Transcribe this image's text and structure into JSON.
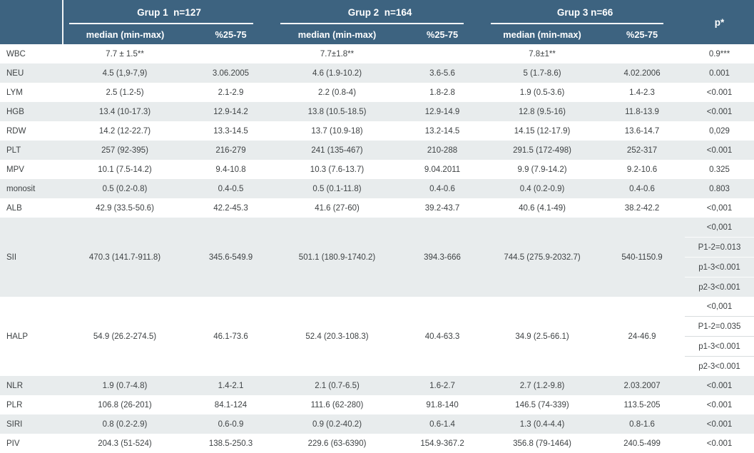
{
  "table": {
    "groups": [
      {
        "label": "Grup 1  n=127"
      },
      {
        "label": "Grup 2  n=164"
      },
      {
        "label": "Grup 3 n=66"
      }
    ],
    "subheaders": {
      "median": "median (min-max)",
      "quartiles": "%25-75"
    },
    "p_header": "p*",
    "colors": {
      "header_bg": "#3d6380",
      "stripe_bg": "#e8eced",
      "text": "#3f4345",
      "header_text": "#ffffff"
    },
    "rows": [
      {
        "label": "WBC",
        "cells": [
          "7.7 ± 1.5**",
          "",
          "7.7±1.8**",
          "",
          "7.8±1**",
          ""
        ],
        "p": "0.9***",
        "striped": false
      },
      {
        "label": "NEU",
        "cells": [
          "4.5 (1,9-7,9)",
          "3.06.2005",
          "4.6 (1.9-10.2)",
          "3.6-5.6",
          "5 (1.7-8.6)",
          "4.02.2006"
        ],
        "p": "0.001",
        "striped": true
      },
      {
        "label": "LYM",
        "cells": [
          "2.5 (1.2-5)",
          "2.1-2.9",
          "2.2 (0.8-4)",
          "1.8-2.8",
          "1.9 (0.5-3.6)",
          "1.4-2.3"
        ],
        "p": "<0.001",
        "striped": false
      },
      {
        "label": "HGB",
        "cells": [
          "13.4 (10-17.3)",
          "12.9-14.2",
          "13.8 (10.5-18.5)",
          "12.9-14.9",
          "12.8 (9.5-16)",
          "11.8-13.9"
        ],
        "p": "<0.001",
        "striped": true
      },
      {
        "label": "RDW",
        "cells": [
          "14.2 (12-22.7)",
          "13.3-14.5",
          "13.7 (10.9-18)",
          "13.2-14.5",
          "14.15 (12-17.9)",
          "13.6-14.7"
        ],
        "p": "0,029",
        "striped": false
      },
      {
        "label": "PLT",
        "cells": [
          "257 (92-395)",
          "216-279",
          "241 (135-467)",
          "210-288",
          "291.5 (172-498)",
          "252-317"
        ],
        "p": "<0.001",
        "striped": true
      },
      {
        "label": "MPV",
        "cells": [
          "10.1 (7.5-14.2)",
          "9.4-10.8",
          "10.3 (7.6-13.7)",
          "9.04.2011",
          "9.9 (7.9-14.2)",
          "9.2-10.6"
        ],
        "p": "0.325",
        "striped": false
      },
      {
        "label": "monosit",
        "cells": [
          "0.5 (0.2-0.8)",
          "0.4-0.5",
          "0.5 (0.1-11.8)",
          "0.4-0.6",
          "0.4 (0.2-0.9)",
          "0.4-0.6"
        ],
        "p": "0.803",
        "striped": true
      },
      {
        "label": "ALB",
        "cells": [
          "42.9 (33.5-50.6)",
          "42.2-45.3",
          "41.6 (27-60)",
          "39.2-43.7",
          "40.6 (4.1-49)",
          "38.2-42.2"
        ],
        "p": "<0,001",
        "striped": false
      },
      {
        "label": "SII",
        "cells": [
          "470.3 (141.7-911.8)",
          "345.6-549.9",
          "501.1 (180.9-1740.2)",
          "394.3-666",
          "744.5 (275.9-2032.7)",
          "540-1150.9"
        ],
        "p_list": [
          "<0,001",
          "P1-2=0.013",
          "p1-3<0.001",
          "p2-3<0.001"
        ],
        "striped": true
      },
      {
        "label": "HALP",
        "cells": [
          "54.9 (26.2-274.5)",
          "46.1-73.6",
          "52.4 (20.3-108.3)",
          "40.4-63.3",
          "34.9 (2.5-66.1)",
          "24-46.9"
        ],
        "p_list": [
          "<0,001",
          "P1-2=0.035",
          "p1-3<0.001",
          "p2-3<0.001"
        ],
        "striped": false
      },
      {
        "label": "NLR",
        "cells": [
          "1.9 (0.7-4.8)",
          "1.4-2.1",
          "2.1 (0.7-6.5)",
          "1.6-2.7",
          "2.7 (1.2-9.8)",
          "2.03.2007"
        ],
        "p": "<0.001",
        "striped": true
      },
      {
        "label": "PLR",
        "cells": [
          "106.8 (26-201)",
          "84.1-124",
          "111.6 (62-280)",
          "91.8-140",
          "146.5 (74-339)",
          "113.5-205"
        ],
        "p": "<0.001",
        "striped": false
      },
      {
        "label": "SIRI",
        "cells": [
          "0.8 (0.2-2.9)",
          "0.6-0.9",
          "0.9 (0.2-40.2)",
          "0.6-1.4",
          "1.3 (0.4-4.4)",
          "0.8-1.6"
        ],
        "p": "<0.001",
        "striped": true
      },
      {
        "label": "PIV",
        "cells": [
          "204.3 (51-524)",
          "138.5-250.3",
          "229.6 (63-6390)",
          "154.9-367.2",
          "356.8 (79-1464)",
          "240.5-499"
        ],
        "p": "<0.001",
        "striped": false
      }
    ]
  }
}
